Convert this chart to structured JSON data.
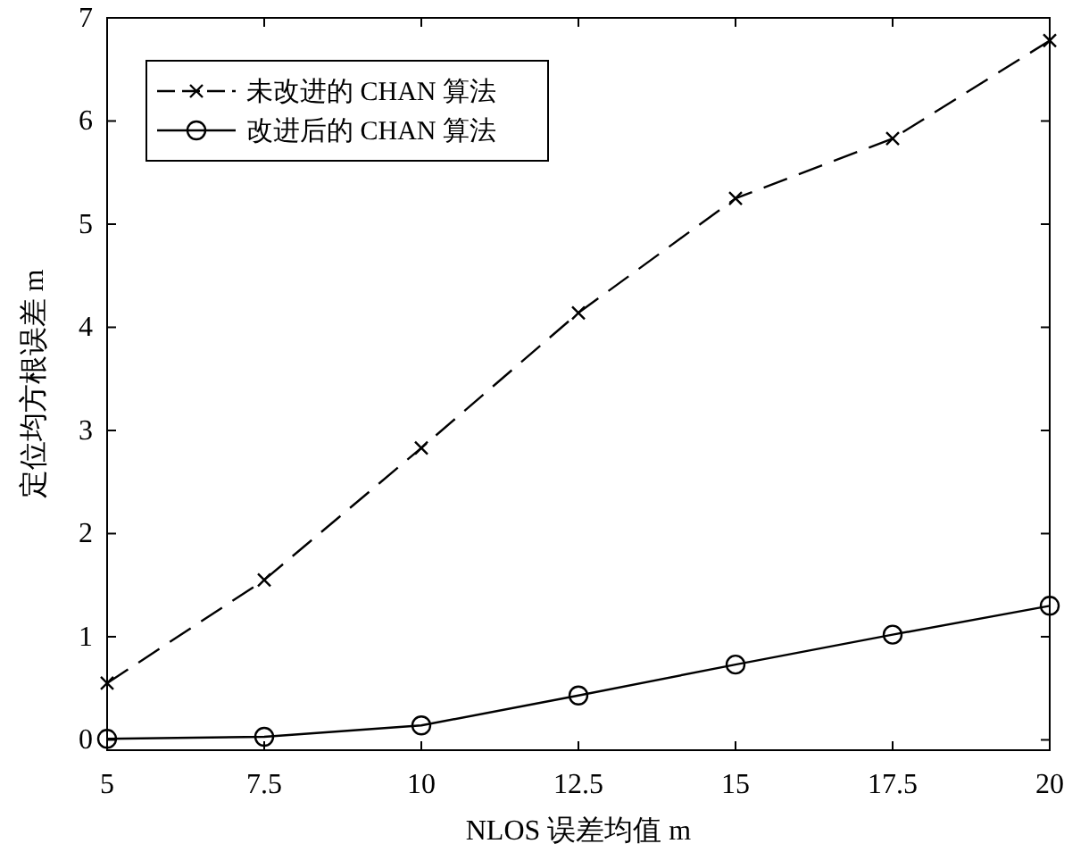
{
  "chart_data": {
    "type": "line",
    "xlabel": "NLOS 误差均值 m",
    "ylabel": "定位均方根误差 m",
    "x": [
      5,
      7.5,
      10,
      12.5,
      15,
      17.5,
      20
    ],
    "series": [
      {
        "name": "未改进的 CHAN 算法",
        "color": "#000000",
        "marker": "cross",
        "line_style": "dashed",
        "values": [
          0.55,
          1.55,
          2.83,
          4.14,
          5.25,
          5.83,
          6.78
        ]
      },
      {
        "name": "改进后的 CHAN 算法",
        "color": "#000000",
        "marker": "circle",
        "line_style": "solid",
        "values": [
          0.01,
          0.03,
          0.14,
          0.43,
          0.73,
          1.02,
          1.3
        ]
      }
    ],
    "xlim": [
      5,
      20
    ],
    "xticks": [
      5,
      7.5,
      10,
      12.5,
      15,
      17.5,
      20
    ],
    "ylim": [
      -0.1,
      7
    ],
    "yticks": [
      0,
      1,
      2,
      3,
      4,
      5,
      6,
      7
    ],
    "grid": false,
    "legend": "top left"
  }
}
